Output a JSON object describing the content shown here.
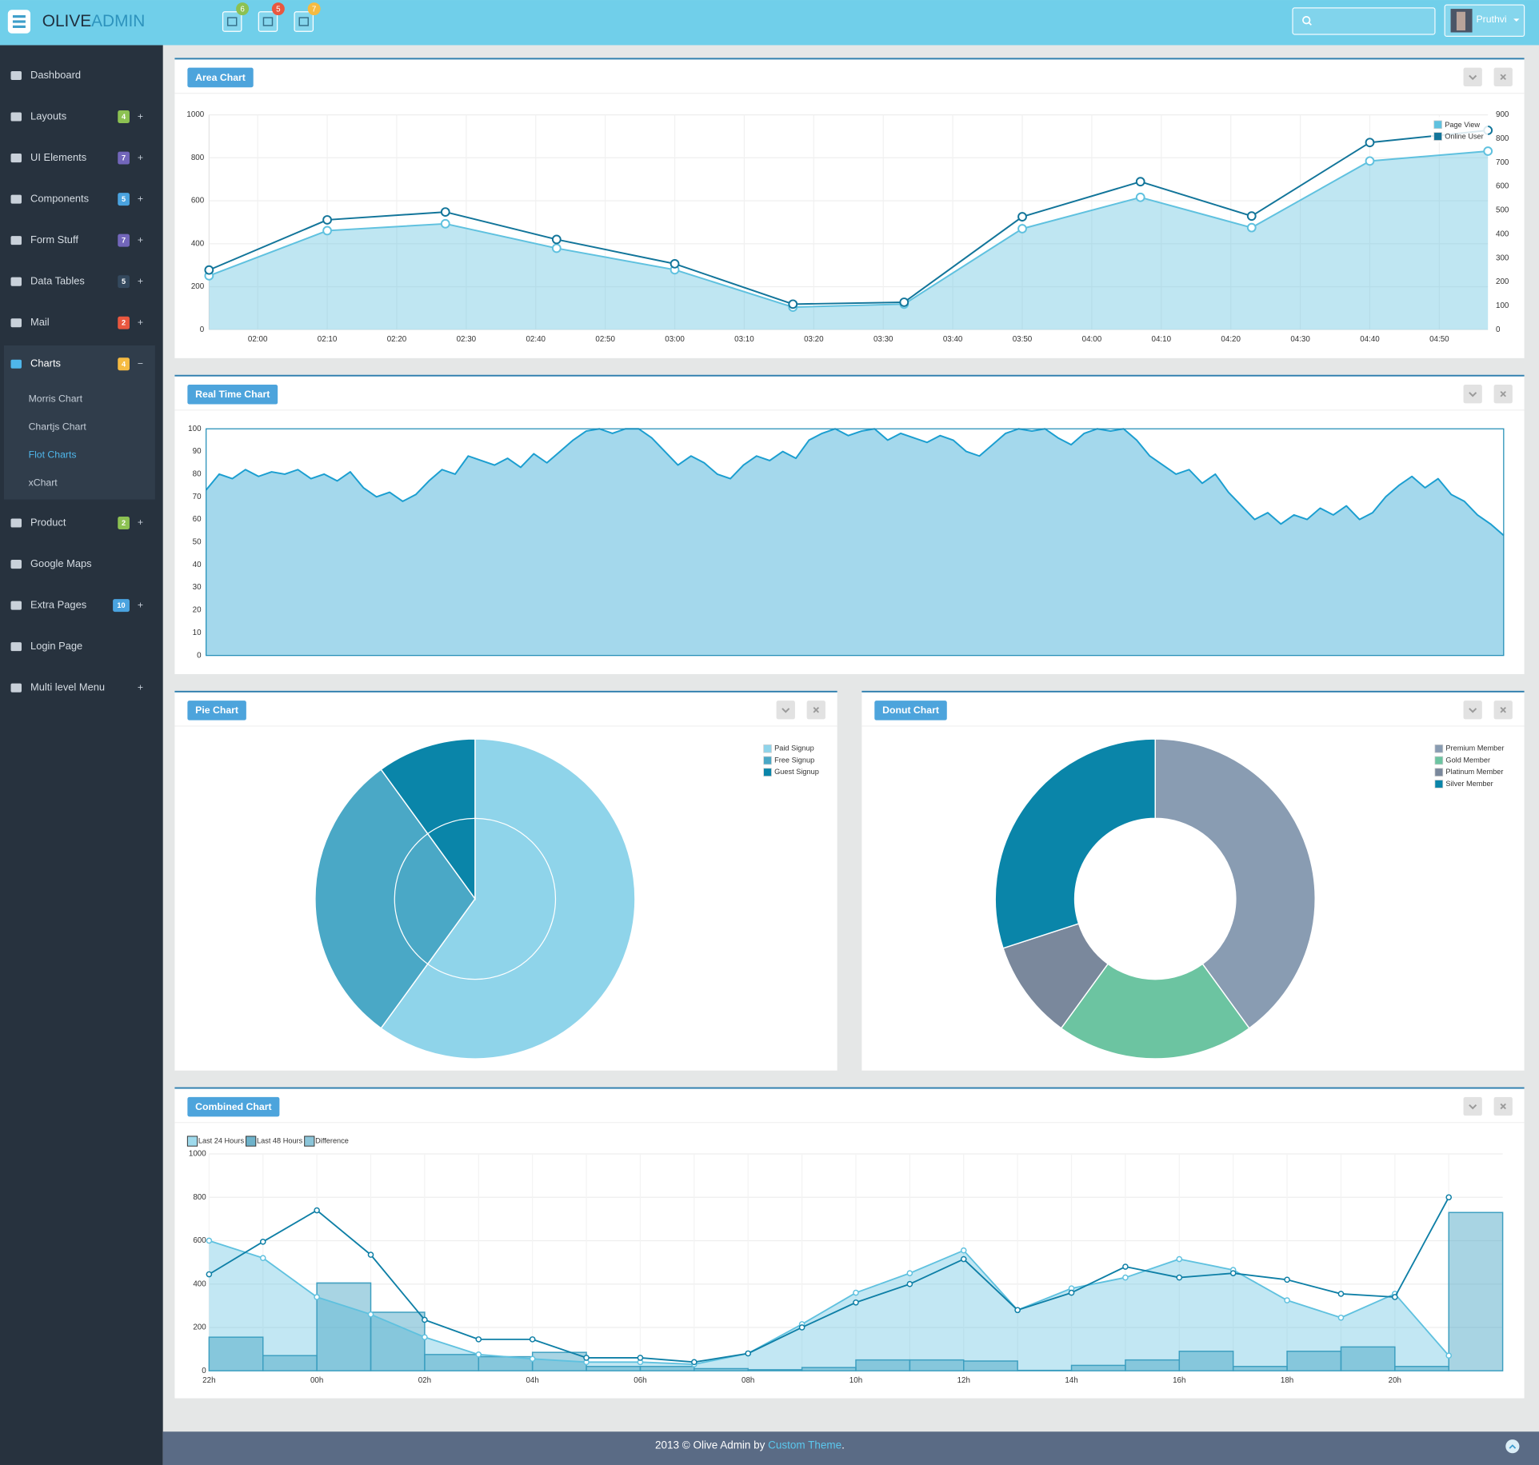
{
  "header": {
    "logo_primary": "OLIVE",
    "logo_secondary": "ADMIN",
    "notifications": [
      {
        "count": 6,
        "color": "#8cc152"
      },
      {
        "count": 5,
        "color": "#e9573f"
      },
      {
        "count": 7,
        "color": "#f6bb42"
      }
    ],
    "user": "Pruthvi"
  },
  "sidebar": {
    "items": [
      {
        "label": "Dashboard"
      },
      {
        "label": "Layouts",
        "badge": 4,
        "badge_color": "#8cc152",
        "toggle": "+"
      },
      {
        "label": "UI Elements",
        "badge": 7,
        "badge_color": "#7266ba",
        "toggle": "+"
      },
      {
        "label": "Components",
        "badge": 5,
        "badge_color": "#4aa3df",
        "toggle": "+"
      },
      {
        "label": "Form Stuff",
        "badge": 7,
        "badge_color": "#7266ba",
        "toggle": "+"
      },
      {
        "label": "Data Tables",
        "badge": 5,
        "badge_color": "#34495e",
        "toggle": "+"
      },
      {
        "label": "Mail",
        "badge": 2,
        "badge_color": "#e9573f",
        "toggle": "+"
      },
      {
        "label": "Charts",
        "badge": 4,
        "badge_color": "#f6bb42",
        "toggle": "−",
        "children": [
          {
            "label": "Morris Chart"
          },
          {
            "label": "Chartjs Chart"
          },
          {
            "label": "Flot Charts",
            "active": true
          },
          {
            "label": "xChart"
          }
        ]
      },
      {
        "label": "Product",
        "badge": 2,
        "badge_color": "#8cc152",
        "toggle": "+"
      },
      {
        "label": "Google Maps"
      },
      {
        "label": "Extra Pages",
        "badge": 10,
        "badge_color": "#4aa3df",
        "toggle": "+"
      },
      {
        "label": "Login Page"
      },
      {
        "label": "Multi level Menu",
        "toggle": "+"
      }
    ]
  },
  "chart_data": [
    {
      "type": "area",
      "title": "Area Chart",
      "x": [
        113,
        130,
        147,
        163,
        180,
        197,
        213,
        230,
        247,
        263,
        280,
        297
      ],
      "xlim": [
        113,
        297
      ],
      "xticks": [
        {
          "value": 120,
          "label": "02:00"
        },
        {
          "value": 130,
          "label": "02:10"
        },
        {
          "value": 140,
          "label": "02:20"
        },
        {
          "value": 150,
          "label": "02:30"
        },
        {
          "value": 160,
          "label": "02:40"
        },
        {
          "value": 170,
          "label": "02:50"
        },
        {
          "value": 180,
          "label": "03:00"
        },
        {
          "value": 190,
          "label": "03:10"
        },
        {
          "value": 200,
          "label": "03:20"
        },
        {
          "value": 210,
          "label": "03:30"
        },
        {
          "value": 220,
          "label": "03:40"
        },
        {
          "value": 230,
          "label": "03:50"
        },
        {
          "value": 240,
          "label": "04:00"
        },
        {
          "value": 250,
          "label": "04:10"
        },
        {
          "value": 260,
          "label": "04:20"
        },
        {
          "value": 270,
          "label": "04:30"
        },
        {
          "value": 280,
          "label": "04:40"
        },
        {
          "value": 290,
          "label": "04:50"
        }
      ],
      "ylim": [
        0,
        1000
      ],
      "yticks": [
        0,
        200,
        400,
        600,
        800,
        1000
      ],
      "y2lim": [
        0,
        900
      ],
      "y2ticks": [
        0,
        100,
        200,
        300,
        400,
        500,
        600,
        700,
        800,
        900
      ],
      "grid": true,
      "markers": true,
      "legend": "top-right",
      "series": [
        {
          "name": "Page View",
          "color": "#5fc1df",
          "fill": true,
          "values": [
            251,
            461,
            493,
            379,
            279,
            105,
            119,
            470,
            616,
            475,
            785,
            831
          ]
        },
        {
          "name": "Online User",
          "color": "#12759a",
          "axis": "y2",
          "values": [
            250,
            460,
            493,
            378,
            276,
            107,
            115,
            473,
            620,
            476,
            784,
            835
          ]
        }
      ]
    },
    {
      "type": "area",
      "title": "Real Time Chart",
      "ylim": [
        0,
        100
      ],
      "yticks": [
        0,
        10,
        20,
        30,
        40,
        50,
        60,
        70,
        80,
        90,
        100
      ],
      "frame": true,
      "series": [
        {
          "color": "#1b9ed0",
          "fill": true,
          "values": [
            73,
            80,
            78,
            82,
            79,
            81,
            80,
            82,
            78,
            80,
            77,
            81,
            74,
            70,
            72,
            68,
            71,
            77,
            82,
            80,
            88,
            86,
            84,
            87,
            83,
            89,
            85,
            90,
            95,
            99,
            100,
            98,
            100,
            100,
            96,
            90,
            84,
            88,
            85,
            80,
            78,
            84,
            88,
            86,
            90,
            87,
            95,
            98,
            100,
            97,
            99,
            100,
            95,
            98,
            96,
            94,
            97,
            95,
            90,
            88,
            93,
            98,
            100,
            99,
            100,
            96,
            93,
            98,
            100,
            99,
            100,
            95,
            88,
            84,
            80,
            82,
            76,
            80,
            72,
            66,
            60,
            63,
            58,
            62,
            60,
            65,
            62,
            66,
            60,
            63,
            70,
            75,
            79,
            74,
            78,
            71,
            68,
            62,
            58,
            53
          ]
        }
      ]
    },
    {
      "type": "pie",
      "title": "Pie Chart",
      "categories": [
        "Paid Signup",
        "Free Signup",
        "Guest Signup"
      ],
      "values": [
        60,
        30,
        10
      ],
      "colors": [
        "#8fd4ea",
        "#4aa8c6",
        "#0a85a9"
      ],
      "legend": "top-right"
    },
    {
      "type": "donut",
      "title": "Donut Chart",
      "categories": [
        "Premium Member",
        "Gold Member",
        "Platinum Member",
        "Silver Member"
      ],
      "values": [
        40,
        20,
        10,
        30
      ],
      "colors": [
        "#899cb2",
        "#6cc4a1",
        "#7a889c",
        "#0a85a9"
      ],
      "legend": "top-right"
    },
    {
      "type": "combo",
      "title": "Combined Chart",
      "categories": [
        "22h",
        null,
        "00h",
        null,
        "02h",
        null,
        "04h",
        null,
        "06h",
        null,
        "08h",
        null,
        "10h",
        null,
        "12h",
        null,
        "14h",
        null,
        "16h",
        null,
        "18h",
        null,
        "20h",
        null
      ],
      "ylim": [
        0,
        1000
      ],
      "yticks": [
        0,
        200,
        400,
        600,
        800,
        1000
      ],
      "grid": true,
      "legend": "top-left",
      "series": [
        {
          "name": "Last 24 Hours",
          "color": "#5fc1df",
          "kind": "area",
          "values": [
            600,
            520,
            340,
            260,
            155,
            75,
            55,
            40,
            40,
            30,
            80,
            215,
            360,
            450,
            555,
            280,
            380,
            430,
            515,
            465,
            325,
            245,
            355,
            70
          ]
        },
        {
          "name": "Last 48 Hours",
          "color": "#0e7fa6",
          "kind": "line",
          "values": [
            445,
            595,
            740,
            535,
            235,
            145,
            145,
            60,
            60,
            40,
            80,
            200,
            315,
            400,
            515,
            280,
            360,
            480,
            430,
            450,
            420,
            355,
            340,
            800
          ]
        },
        {
          "name": "Difference",
          "color": "#3d9fc0",
          "kind": "bar",
          "values": [
            155,
            70,
            405,
            270,
            75,
            65,
            85,
            20,
            20,
            10,
            5,
            15,
            50,
            50,
            45,
            2,
            25,
            50,
            90,
            20,
            90,
            110,
            20,
            730
          ]
        }
      ]
    }
  ],
  "footer": {
    "text": "2013 © Olive Admin by",
    "link": "Custom Theme",
    "end": "."
  }
}
